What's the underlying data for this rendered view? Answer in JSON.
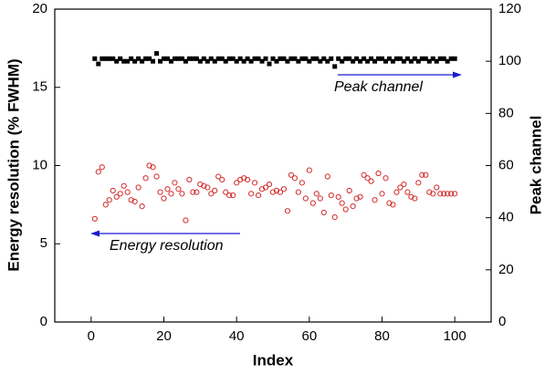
{
  "chart_data": {
    "type": "scatter",
    "xlabel": "Index",
    "ylabel": "Energy resolution (% FWHM)",
    "y2label": "Peak channel",
    "xlim": [
      -10,
      110
    ],
    "xticks": [
      0,
      20,
      40,
      60,
      80,
      100
    ],
    "ylim": [
      0,
      20
    ],
    "yticks": [
      0,
      5,
      10,
      15,
      20
    ],
    "y2lim": [
      0,
      120
    ],
    "y2ticks": [
      0,
      20,
      40,
      60,
      80,
      100,
      120
    ],
    "x": [
      1,
      2,
      3,
      4,
      5,
      6,
      7,
      8,
      9,
      10,
      11,
      12,
      13,
      14,
      15,
      16,
      17,
      18,
      19,
      20,
      21,
      22,
      23,
      24,
      25,
      26,
      27,
      28,
      29,
      30,
      31,
      32,
      33,
      34,
      35,
      36,
      37,
      38,
      39,
      40,
      41,
      42,
      43,
      44,
      45,
      46,
      47,
      48,
      49,
      50,
      51,
      52,
      53,
      54,
      55,
      56,
      57,
      58,
      59,
      60,
      61,
      62,
      63,
      64,
      65,
      66,
      67,
      68,
      69,
      70,
      71,
      72,
      73,
      74,
      75,
      76,
      77,
      78,
      79,
      80,
      81,
      82,
      83,
      84,
      85,
      86,
      87,
      88,
      89,
      90,
      91,
      92,
      93,
      94,
      95,
      96,
      97,
      98,
      99,
      100
    ],
    "series": [
      {
        "name": "Energy resolution",
        "color": "#d42a2a",
        "marker": "circle-open",
        "arrow": "left",
        "values": [
          6.6,
          9.6,
          9.9,
          7.5,
          7.8,
          8.4,
          8.0,
          8.2,
          8.7,
          8.3,
          7.8,
          7.7,
          8.6,
          7.4,
          9.2,
          10.0,
          9.9,
          9.3,
          8.3,
          7.9,
          8.5,
          8.2,
          8.9,
          8.5,
          8.2,
          6.5,
          9.1,
          8.3,
          8.3,
          8.8,
          8.7,
          8.6,
          8.2,
          8.4,
          9.3,
          9.1,
          8.3,
          8.1,
          8.1,
          8.9,
          9.1,
          9.2,
          9.1,
          8.2,
          8.9,
          8.1,
          8.5,
          8.6,
          8.8,
          8.3,
          8.4,
          8.3,
          8.5,
          7.1,
          9.4,
          9.2,
          8.3,
          8.9,
          7.9,
          9.7,
          7.6,
          8.2,
          7.9,
          7.0,
          9.3,
          8.1,
          6.7,
          8.0,
          7.6,
          7.2,
          8.4,
          7.4,
          7.9,
          8.0,
          9.4,
          9.2,
          9.0,
          7.8,
          9.5,
          8.2,
          9.2,
          7.6,
          7.5,
          8.3,
          8.6,
          8.8,
          8.3,
          8.0,
          7.9,
          8.9,
          9.4,
          9.4,
          8.3,
          8.2,
          8.6,
          8.2,
          8.2,
          8.2,
          8.2,
          8.2
        ]
      },
      {
        "name": "Peak channel",
        "color": "#000000",
        "marker": "square",
        "axis": "y2",
        "arrow": "right",
        "values": [
          101,
          99,
          101,
          101,
          101,
          101,
          100,
          101,
          100,
          100,
          101,
          100,
          101,
          100,
          101,
          101,
          100,
          103,
          100,
          101,
          101,
          100,
          101,
          101,
          101,
          100,
          101,
          101,
          101,
          100,
          101,
          100,
          101,
          100,
          101,
          101,
          100,
          101,
          101,
          100,
          101,
          100,
          101,
          100,
          101,
          101,
          100,
          101,
          99,
          101,
          100,
          101,
          101,
          100,
          101,
          101,
          100,
          101,
          101,
          100,
          101,
          101,
          100,
          101,
          100,
          101,
          98,
          101,
          100,
          101,
          101,
          100,
          101,
          100,
          101,
          100,
          101,
          100,
          101,
          101,
          100,
          101,
          100,
          101,
          101,
          100,
          101,
          100,
          101,
          100,
          101,
          101,
          100,
          101,
          100,
          101,
          101,
          100,
          101,
          101
        ]
      }
    ]
  }
}
